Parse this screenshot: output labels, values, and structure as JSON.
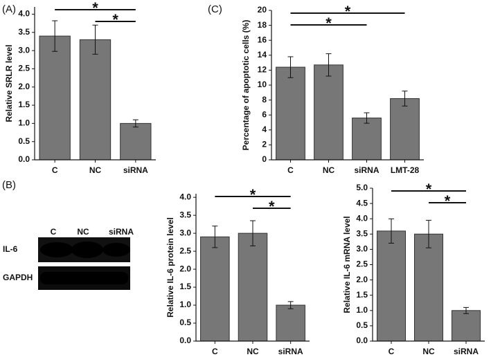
{
  "panel_labels": [
    "(A)",
    "(B)",
    "(C)"
  ],
  "blot": {
    "lanes": [
      "C",
      "NC",
      "siRNA"
    ],
    "rows": [
      "IL-6",
      "GAPDH"
    ]
  },
  "chart_data": [
    {
      "type": "bar",
      "ylabel": "Relative SRLR level",
      "categories": [
        "C",
        "NC",
        "siRNA"
      ],
      "values": [
        3.4,
        3.3,
        1.0
      ],
      "errors": [
        0.42,
        0.4,
        0.1
      ],
      "color": "#777777",
      "ylim": [
        0,
        4.2
      ],
      "yticks": [
        {
          "value": 0,
          "label": "0.0"
        },
        0.5,
        {
          "value": 1,
          "label": "1.0"
        },
        1.5,
        {
          "value": 2,
          "label": "2.0"
        },
        2.5,
        {
          "value": 3,
          "label": "3.0"
        },
        3.5,
        {
          "value": 4,
          "label": "4.0"
        }
      ],
      "significance": [
        {
          "from": 0,
          "to": 2,
          "label": "*"
        },
        {
          "from": 1,
          "to": 2,
          "label": "*"
        }
      ]
    },
    {
      "type": "bar",
      "ylabel": "Percentage of apoptotic cells (%)",
      "categories": [
        "C",
        "NC",
        "siRNA",
        "LMT-28"
      ],
      "values": [
        12.4,
        12.7,
        5.6,
        8.2
      ],
      "errors": [
        1.4,
        1.5,
        0.7,
        1.0
      ],
      "color": "#777777",
      "ylim": [
        0,
        20
      ],
      "yticks": [
        0,
        2,
        4,
        6,
        8,
        10,
        12,
        14,
        16,
        18,
        20
      ],
      "significance": [
        {
          "from": 0,
          "to": 3,
          "label": "*"
        },
        {
          "from": 0,
          "to": 2,
          "label": "*"
        }
      ]
    },
    {
      "type": "bar",
      "ylabel": "Relative IL-6 protein level",
      "categories": [
        "C",
        "NC",
        "siRNA"
      ],
      "values": [
        2.9,
        3.0,
        1.0
      ],
      "errors": [
        0.3,
        0.35,
        0.1
      ],
      "color": "#777777",
      "ylim": [
        0,
        4.1
      ],
      "yticks": [
        {
          "value": 0,
          "label": "0.0"
        },
        0.5,
        {
          "value": 1,
          "label": "1.0"
        },
        1.5,
        {
          "value": 2,
          "label": "2.0"
        },
        2.5,
        {
          "value": 3,
          "label": "3.0"
        },
        3.5,
        {
          "value": 4,
          "label": "4.0"
        }
      ],
      "significance": [
        {
          "from": 0,
          "to": 2,
          "label": "*"
        },
        {
          "from": 1,
          "to": 2,
          "label": "*"
        }
      ]
    },
    {
      "type": "bar",
      "ylabel": "Relative IL-6 mRNA level",
      "categories": [
        "C",
        "NC",
        "siRNA"
      ],
      "values": [
        3.6,
        3.5,
        1.0
      ],
      "errors": [
        0.4,
        0.45,
        0.1
      ],
      "color": "#777777",
      "ylim": [
        0,
        5
      ],
      "yticks": [
        {
          "value": 0,
          "label": "0.0"
        },
        0.5,
        {
          "value": 1,
          "label": "1.0"
        },
        1.5,
        {
          "value": 2,
          "label": "2.0"
        },
        2.5,
        {
          "value": 3,
          "label": "3.0"
        },
        3.5,
        {
          "value": 4,
          "label": "4.0"
        },
        4.5,
        {
          "value": 5,
          "label": "5.0"
        }
      ],
      "significance": [
        {
          "from": 0,
          "to": 2,
          "label": "*"
        },
        {
          "from": 1,
          "to": 2,
          "label": "*"
        }
      ]
    }
  ]
}
